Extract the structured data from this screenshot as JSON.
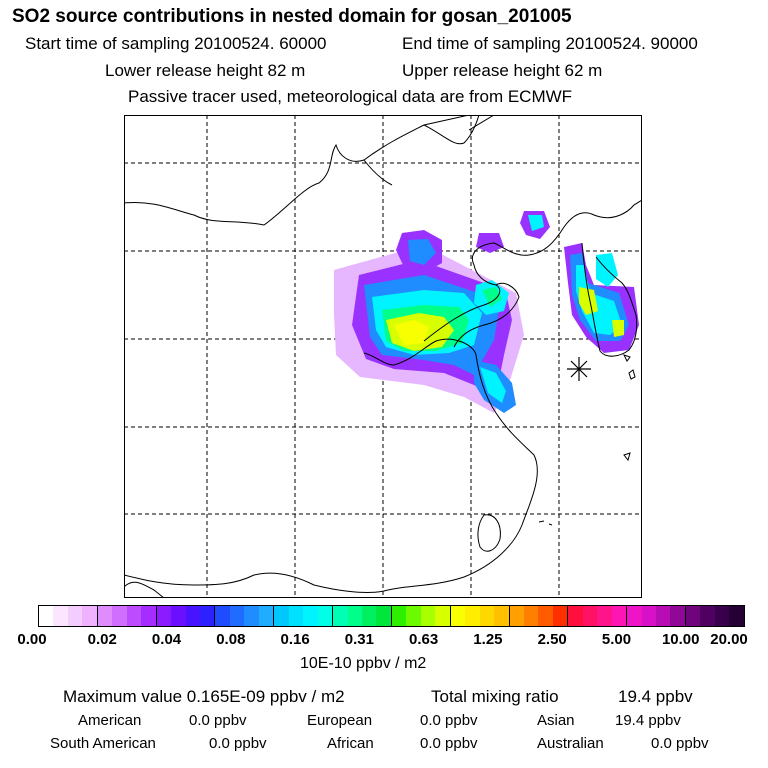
{
  "header": {
    "title": "SO2 source contributions in nested domain for gosan_201005",
    "start": "Start time of sampling 20100524. 60000",
    "end": "End time of sampling 20100524. 90000",
    "lower": "Lower release height   82 m",
    "upper": "Upper release height   62 m",
    "note": "Passive tracer used, meteorological data are from ECMWF"
  },
  "legend": {
    "ticks": [
      "0.00",
      "0.02",
      "0.04",
      "0.08",
      "0.16",
      "0.31",
      "0.63",
      "1.25",
      "2.50",
      "5.00",
      "10.00",
      "20.00"
    ],
    "units": "10E-10 ppbv / m2",
    "colors": [
      "#ffffff",
      "#fbe6ff",
      "#f4cdff",
      "#eeb2ff",
      "#df8cff",
      "#d06eff",
      "#bd4bff",
      "#a62cff",
      "#8a1cff",
      "#6a10ff",
      "#4814ff",
      "#2c22ff",
      "#1f4cff",
      "#1f6cff",
      "#1f8cff",
      "#1faeff",
      "#00c8ff",
      "#00e0ff",
      "#00f4ff",
      "#00ffe6",
      "#00ffb4",
      "#00ff8a",
      "#00f060",
      "#00e63c",
      "#2cf000",
      "#6cfa00",
      "#a8ff00",
      "#d8ff00",
      "#f8ff00",
      "#ffee00",
      "#ffd800",
      "#ffc000",
      "#ffa000",
      "#ff8000",
      "#ff5c00",
      "#ff3000",
      "#ff0f3c",
      "#ff1264",
      "#ff148c",
      "#ff14b4",
      "#f014c8",
      "#d810c8",
      "#b80cb4",
      "#900898",
      "#70047c",
      "#500060",
      "#38004a",
      "#240034"
    ]
  },
  "stats": {
    "max": "Maximum value  0.165E-09 ppbv / m2",
    "total_label": "Total mixing ratio",
    "total_value": "19.4 ppbv",
    "american_label": "American",
    "american_value": "0.0 ppbv",
    "european_label": "European",
    "european_value": "0.0 ppbv",
    "asian_label": "Asian",
    "asian_value": "19.4 ppbv",
    "southamerican_label": "South American",
    "southamerican_value": "0.0 ppbv",
    "african_label": "African",
    "african_value": "0.0 ppbv",
    "australian_label": "Australian",
    "australian_value": "0.0 ppbv"
  }
}
